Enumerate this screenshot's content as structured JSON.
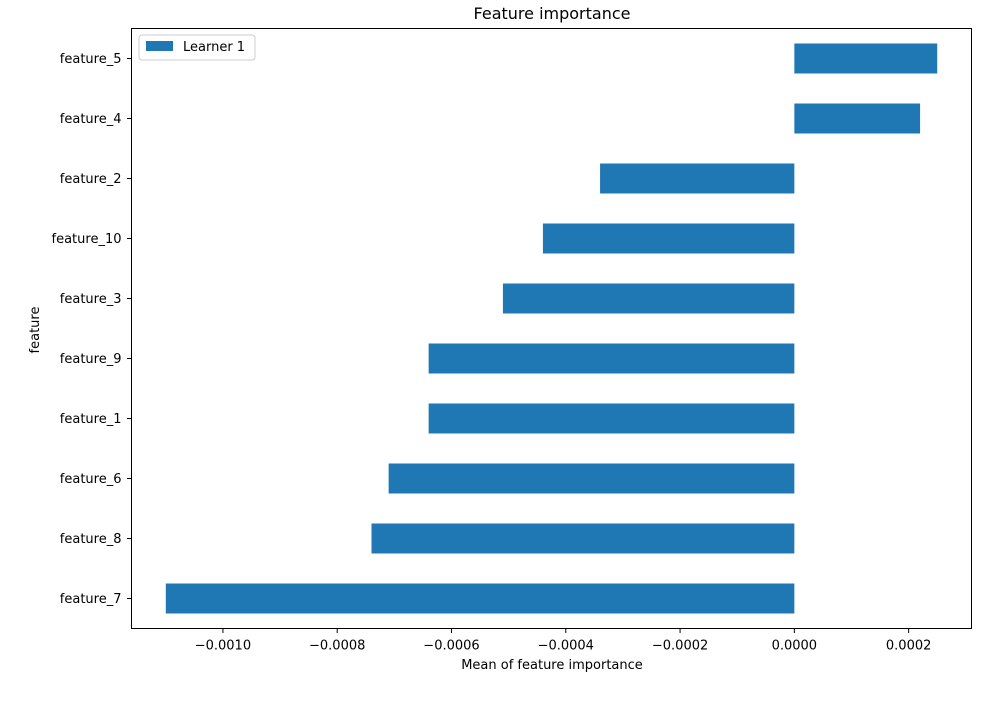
{
  "chart_data": {
    "type": "bar",
    "orientation": "horizontal",
    "title": "Feature importance",
    "xlabel": "Mean of feature importance",
    "ylabel": "feature",
    "xlim": [
      -0.00116,
      0.00031
    ],
    "grid": false,
    "legend": {
      "placement": "top-left",
      "entries": [
        "Learner 1"
      ]
    },
    "categories": [
      "feature_5",
      "feature_4",
      "feature_2",
      "feature_10",
      "feature_3",
      "feature_9",
      "feature_1",
      "feature_6",
      "feature_8",
      "feature_7"
    ],
    "series": [
      {
        "name": "Learner 1",
        "color": "#1f77b4",
        "values": [
          0.00025,
          0.00022,
          -0.00034,
          -0.00044,
          -0.00051,
          -0.00064,
          -0.00064,
          -0.00071,
          -0.00074,
          -0.0011
        ]
      }
    ],
    "x_ticks": [
      {
        "value": -0.001,
        "label": "−0.0010"
      },
      {
        "value": -0.0008,
        "label": "−0.0008"
      },
      {
        "value": -0.0006,
        "label": "−0.0006"
      },
      {
        "value": -0.0004,
        "label": "−0.0004"
      },
      {
        "value": -0.0002,
        "label": "−0.0002"
      },
      {
        "value": 0.0,
        "label": "0.0000"
      },
      {
        "value": 0.0002,
        "label": "0.0002"
      }
    ]
  }
}
